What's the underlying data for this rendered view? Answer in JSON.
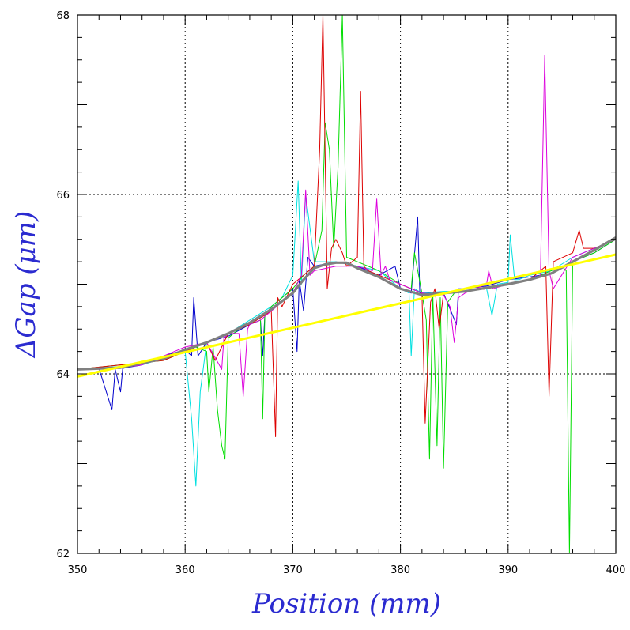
{
  "chart_data": {
    "type": "line",
    "xlabel": "Position (mm)",
    "ylabel": "ΔGap (μm)",
    "xlim": [
      350,
      400
    ],
    "ylim": [
      62,
      68
    ],
    "xticks": [
      350,
      360,
      370,
      380,
      390,
      400
    ],
    "xtick_labels": [
      "350",
      "360",
      "370",
      "380",
      "390",
      "400"
    ],
    "yticks": [
      62,
      64,
      66,
      68
    ],
    "ytick_labels": [
      "62",
      "64",
      "66",
      "68"
    ],
    "grid": true,
    "grid_style": "dotted",
    "legend": "none",
    "colors": {
      "axis_title": "#2b2bd0",
      "fit_line": "#ffff00",
      "mean": "#808080"
    },
    "series": [
      {
        "color": "#0000cc",
        "x": [
          350,
          352,
          353.2,
          353.5,
          354,
          354.2,
          354.5,
          356,
          358,
          360,
          360.6,
          360.8,
          361.2,
          362,
          364,
          366,
          367,
          367.2,
          367.4,
          368,
          370,
          370.4,
          370.6,
          371,
          371.4,
          372,
          374,
          376,
          378,
          379.5,
          380,
          381,
          381.6,
          381.8,
          382,
          384,
          385.2,
          385.4,
          386,
          388,
          390,
          392,
          394,
          396,
          398,
          400
        ],
        "y": [
          64.05,
          64.06,
          63.6,
          64.05,
          63.8,
          64.06,
          64.07,
          64.1,
          64.2,
          64.27,
          64.2,
          64.85,
          64.2,
          64.35,
          64.42,
          64.55,
          64.6,
          64.2,
          64.65,
          64.75,
          64.95,
          64.25,
          65.05,
          64.7,
          65.3,
          65.2,
          65.25,
          65.2,
          65.1,
          65.2,
          64.95,
          64.9,
          65.75,
          64.9,
          64.9,
          64.9,
          64.55,
          64.95,
          64.95,
          64.98,
          65.05,
          65.08,
          65.12,
          65.25,
          65.35,
          65.5
        ]
      },
      {
        "color": "#00e0e0",
        "x": [
          350,
          356,
          360,
          360.6,
          361,
          361.4,
          362,
          364,
          366,
          368,
          369,
          370,
          370.5,
          370.8,
          371.2,
          372,
          374,
          376,
          378,
          379,
          380,
          380.8,
          381,
          381.3,
          382,
          384,
          386,
          388,
          388.5,
          389,
          390,
          390.2,
          390.6,
          391,
          392,
          394,
          396,
          398,
          400
        ],
        "y": [
          64.05,
          64.1,
          64.25,
          63.5,
          62.75,
          63.8,
          64.35,
          64.45,
          64.6,
          64.75,
          64.85,
          65.1,
          66.15,
          65.0,
          66.0,
          65.25,
          65.25,
          65.2,
          65.15,
          65.05,
          64.95,
          64.9,
          64.2,
          64.95,
          64.9,
          64.92,
          64.92,
          64.95,
          64.65,
          65.0,
          65.02,
          65.55,
          65.05,
          65.05,
          65.1,
          65.15,
          65.3,
          65.4,
          65.5
        ]
      },
      {
        "color": "#00dd00",
        "x": [
          350,
          358,
          361,
          362,
          362.2,
          362.6,
          363,
          363.4,
          363.7,
          364,
          365,
          366,
          367,
          367.2,
          367.4,
          368,
          370,
          371,
          372,
          372.7,
          373,
          373.4,
          373.8,
          374.2,
          374.6,
          375,
          376,
          378,
          380,
          381,
          381.3,
          382,
          382.4,
          382.7,
          383,
          383.4,
          383.7,
          384,
          384.4,
          385,
          386,
          388,
          390,
          392,
          394,
          395,
          395.4,
          395.7,
          396,
          398,
          400
        ],
        "y": [
          64.05,
          64.15,
          64.3,
          64.25,
          63.8,
          64.3,
          63.6,
          63.2,
          63.05,
          64.4,
          64.5,
          64.55,
          64.6,
          63.5,
          64.65,
          64.75,
          64.95,
          65.1,
          65.2,
          65.6,
          66.8,
          66.5,
          65.4,
          66.3,
          68.0,
          65.3,
          65.25,
          65.15,
          65.0,
          64.95,
          65.35,
          64.9,
          64.6,
          63.05,
          64.9,
          63.2,
          64.85,
          62.95,
          64.8,
          64.9,
          64.92,
          64.95,
          65.0,
          65.05,
          65.15,
          65.2,
          65.15,
          62.0,
          65.25,
          65.35,
          65.5
        ]
      },
      {
        "color": "#dd0000",
        "x": [
          350,
          358,
          360,
          362,
          362.8,
          364,
          366,
          368,
          368.4,
          368.6,
          369,
          370,
          371,
          372,
          372.5,
          372.8,
          373.2,
          373.6,
          374,
          374.6,
          375,
          376,
          376.3,
          376.6,
          377,
          378,
          380,
          381,
          382,
          382.3,
          382.8,
          383.2,
          383.6,
          384,
          386,
          388,
          390,
          392,
          393,
          393.5,
          393.8,
          394.2,
          396,
          396.6,
          397,
          398,
          400
        ],
        "y": [
          64.05,
          64.15,
          64.25,
          64.35,
          64.15,
          64.45,
          64.55,
          64.7,
          63.3,
          64.85,
          64.75,
          65.0,
          65.1,
          65.2,
          66.5,
          68.0,
          64.95,
          65.4,
          65.5,
          65.35,
          65.2,
          65.3,
          67.15,
          65.2,
          65.15,
          65.1,
          65.0,
          64.95,
          64.9,
          63.45,
          64.8,
          64.95,
          64.5,
          64.9,
          64.92,
          64.95,
          65.0,
          65.05,
          65.15,
          65.2,
          63.75,
          65.25,
          65.35,
          65.6,
          65.4,
          65.4,
          65.5
        ]
      },
      {
        "color": "#dd00dd",
        "x": [
          350,
          352,
          354,
          356,
          358,
          360,
          362,
          363.4,
          363.6,
          364,
          365,
          365.4,
          365.8,
          366,
          367,
          368,
          370,
          370.8,
          371.2,
          371.6,
          372,
          374,
          375,
          376,
          377.4,
          377.8,
          378.2,
          378.6,
          379,
          380,
          382,
          384,
          384.6,
          385,
          385.4,
          386,
          388,
          388.2,
          388.6,
          390,
          392,
          393,
          393.4,
          393.8,
          394.2,
          396,
          398,
          400
        ],
        "y": [
          64.05,
          64.06,
          64.07,
          64.1,
          64.2,
          64.3,
          64.35,
          64.05,
          64.4,
          64.45,
          64.45,
          63.75,
          64.5,
          64.55,
          64.6,
          64.7,
          64.9,
          65.1,
          66.05,
          65.1,
          65.15,
          65.2,
          65.2,
          65.2,
          65.15,
          65.95,
          65.1,
          65.2,
          65.05,
          65.0,
          64.9,
          64.88,
          64.75,
          64.35,
          64.85,
          64.9,
          65.0,
          65.15,
          64.95,
          65.0,
          65.05,
          65.1,
          67.55,
          65.15,
          64.95,
          65.3,
          65.4,
          65.5
        ]
      },
      {
        "color": "#808080",
        "x": [
          350,
          354,
          358,
          360,
          362,
          364,
          366,
          368,
          370,
          371,
          372,
          373,
          374,
          375,
          376,
          378,
          380,
          382,
          384,
          386,
          388,
          390,
          392,
          394,
          396,
          398,
          400
        ],
        "y": [
          64.05,
          64.07,
          64.17,
          64.27,
          64.35,
          64.45,
          64.57,
          64.72,
          64.9,
          65.05,
          65.18,
          65.22,
          65.24,
          65.24,
          65.18,
          65.08,
          64.95,
          64.88,
          64.9,
          64.92,
          64.96,
          65.0,
          65.05,
          65.12,
          65.25,
          65.38,
          65.52
        ],
        "width": 3.2
      },
      {
        "color": "#ffff00",
        "x": [
          350,
          400
        ],
        "y": [
          63.97,
          65.33
        ],
        "width": 3
      }
    ]
  }
}
